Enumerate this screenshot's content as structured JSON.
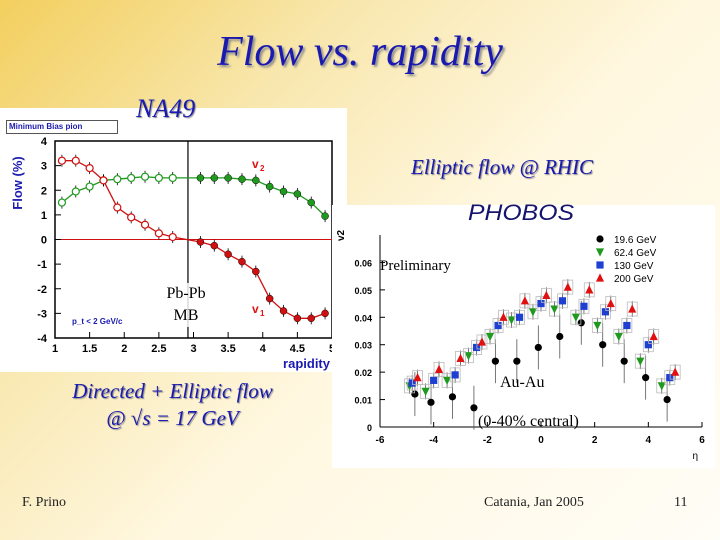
{
  "slide": {
    "title": "Flow vs. rapidity",
    "na49_label": "NA49",
    "rhic_label": "Elliptic flow @ RHIC",
    "directed_line1": "Directed + Elliptic flow",
    "directed_line2": "@ √s = 17 GeV",
    "author": "F. Prino",
    "venue": "Catania, Jan 2005",
    "page": "11"
  },
  "left_plot": {
    "box_label": "Minimum Bias pion",
    "system_line1": "Pb-Pb",
    "system_line2": "MB",
    "cut_label": "p_t < 2 GeV/c"
  },
  "right_plot": {
    "logo_text": "PHOBOS",
    "preliminary": "Preliminary",
    "system": "Au-Au",
    "centrality": "(0-40% central)"
  },
  "chart_data": [
    {
      "type": "scatter",
      "title": "Minimum Bias pion",
      "xlabel": "rapidity",
      "ylabel": "Flow (%)",
      "xlim": [
        1,
        5
      ],
      "ylim": [
        -4,
        4
      ],
      "xticks": [
        "1",
        "1.5",
        "2",
        "2.5",
        "3",
        "3.5",
        "4",
        "4.5",
        "5"
      ],
      "yticks": [
        "-4",
        "-3",
        "-2",
        "-1",
        "0",
        "1",
        "2",
        "3",
        "4"
      ],
      "reference_lines": {
        "x": 2.92,
        "y": 0
      },
      "series": [
        {
          "name": "v2",
          "color": "#1f9a1f",
          "reflected": {
            "x": [
              1.1,
              1.3,
              1.5,
              1.7,
              1.9,
              2.1,
              2.3,
              2.5,
              2.7
            ],
            "y": [
              1.5,
              1.95,
              2.15,
              2.4,
              2.45,
              2.5,
              2.55,
              2.5,
              2.5
            ]
          },
          "measured": {
            "x": [
              3.1,
              3.3,
              3.5,
              3.7,
              3.9,
              4.1,
              4.3,
              4.5,
              4.7,
              4.9
            ],
            "y": [
              2.5,
              2.5,
              2.5,
              2.45,
              2.4,
              2.15,
              1.95,
              1.85,
              1.5,
              0.95
            ]
          }
        },
        {
          "name": "v1",
          "color": "#d01010",
          "reflected": {
            "x": [
              1.1,
              1.3,
              1.5,
              1.7,
              1.9,
              2.1,
              2.3,
              2.5,
              2.7
            ],
            "y": [
              3.2,
              3.2,
              2.9,
              2.4,
              1.3,
              0.9,
              0.6,
              0.25,
              0.1
            ]
          },
          "measured": {
            "x": [
              3.1,
              3.3,
              3.5,
              3.7,
              3.9,
              4.1,
              4.3,
              4.5,
              4.7,
              4.9
            ],
            "y": [
              -0.1,
              -0.25,
              -0.6,
              -0.9,
              -1.3,
              -2.4,
              -2.9,
              -3.2,
              -3.2,
              -3.0
            ]
          }
        }
      ]
    },
    {
      "type": "scatter",
      "xlabel": "η",
      "ylabel": "v2",
      "xlim": [
        -6,
        6
      ],
      "ylim": [
        0,
        0.07
      ],
      "xticks": [
        "-6",
        "-4",
        "-2",
        "0",
        "2",
        "4",
        "6"
      ],
      "yticks": [
        "0",
        "0.01",
        "0.02",
        "0.03",
        "0.04",
        "0.05",
        "0.06"
      ],
      "series": [
        {
          "name": "19.6 GeV",
          "color": "#000000",
          "marker": "circle",
          "x": [
            -4.7,
            -4.1,
            -3.3,
            -2.5,
            -1.7,
            -0.9,
            -0.1,
            0.7,
            1.5,
            2.3,
            3.1,
            3.9,
            4.7
          ],
          "y": [
            0.012,
            0.009,
            0.011,
            0.007,
            0.024,
            0.024,
            0.029,
            0.033,
            0.038,
            0.03,
            0.024,
            0.018,
            0.01
          ]
        },
        {
          "name": "62.4 GeV",
          "color": "#1f9a1f",
          "marker": "triangle-down",
          "x": [
            -4.9,
            -4.3,
            -3.5,
            -2.7,
            -1.9,
            -1.1,
            -0.3,
            0.5,
            1.3,
            2.1,
            2.9,
            3.7,
            4.5
          ],
          "y": [
            0.015,
            0.013,
            0.017,
            0.026,
            0.033,
            0.039,
            0.042,
            0.043,
            0.04,
            0.037,
            0.033,
            0.024,
            0.015
          ]
        },
        {
          "name": "130 GeV",
          "color": "#1f3fd0",
          "marker": "square",
          "x": [
            -4.8,
            -4.0,
            -3.2,
            -2.4,
            -1.6,
            -0.8,
            0.0,
            0.8,
            1.6,
            2.4,
            3.2,
            4.0,
            4.8
          ],
          "y": [
            0.016,
            0.017,
            0.019,
            0.029,
            0.037,
            0.04,
            0.045,
            0.046,
            0.044,
            0.042,
            0.037,
            0.03,
            0.018
          ]
        },
        {
          "name": "200 GeV",
          "color": "#e01010",
          "marker": "triangle-up",
          "x": [
            -4.6,
            -3.8,
            -3.0,
            -2.2,
            -1.4,
            -0.6,
            0.2,
            1.0,
            1.8,
            2.6,
            3.4,
            4.2,
            5.0
          ],
          "y": [
            0.018,
            0.021,
            0.025,
            0.031,
            0.04,
            0.046,
            0.048,
            0.051,
            0.05,
            0.045,
            0.043,
            0.033,
            0.02
          ]
        }
      ]
    }
  ]
}
